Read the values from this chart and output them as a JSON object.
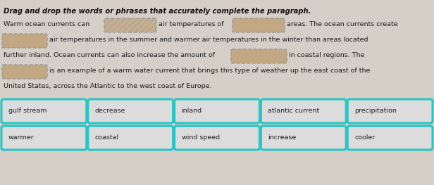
{
  "title": "Drag and drop the words or phrases that accurately complete the paragraph.",
  "bg_color": "#d6cfc7",
  "text_color": "#1a1a1a",
  "title_color": "#111111",
  "blank_fill_striped": "#c2a882",
  "blank_fill_dotted": "#c2a882",
  "card_border_color": "#26c6c6",
  "card_bg_color": "#dcdcdc",
  "card_text_color": "#222222",
  "row1_cards": [
    "gulf stream",
    "decrease",
    "inland",
    "atlantic current",
    "precipitation"
  ],
  "row2_cards": [
    "warmer",
    "coastal",
    "wind speed",
    "increase",
    "cooler"
  ],
  "font_size_title": 7.2,
  "font_size_text": 6.8,
  "font_size_card": 6.8
}
